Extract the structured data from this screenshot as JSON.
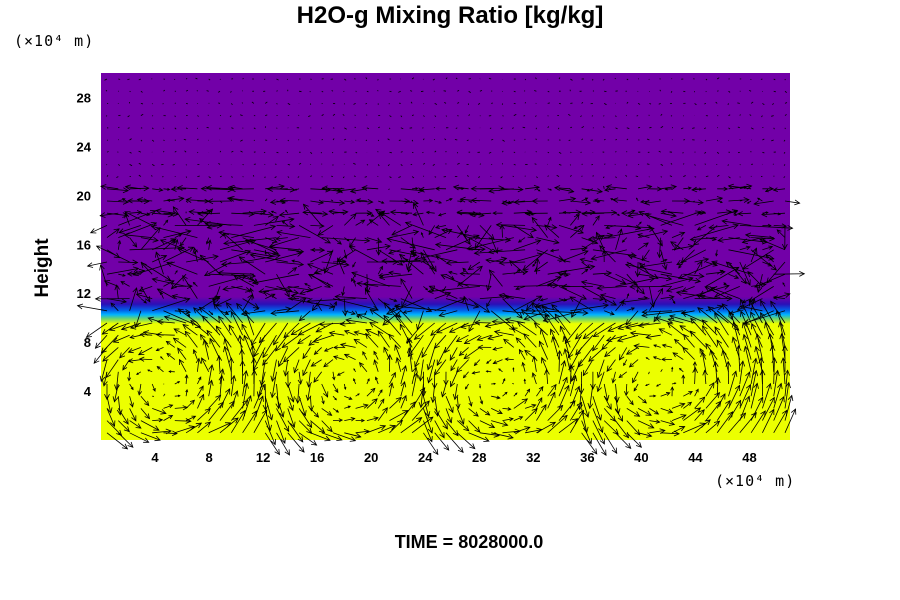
{
  "chart_data": {
    "type": "heatmap",
    "title": "H2O-g Mixing Ratio [kg/kg]",
    "ylabel": "Height",
    "x_unit": "(×10⁴ m)",
    "y_unit": "(×10⁴ m)",
    "footer": "TIME = 8028000.0",
    "xlim": [
      0,
      51
    ],
    "ylim": [
      0,
      30
    ],
    "x_ticks": [
      4,
      8,
      12,
      16,
      20,
      24,
      28,
      32,
      36,
      40,
      44,
      48
    ],
    "y_ticks": [
      4,
      8,
      12,
      16,
      20,
      24,
      28
    ],
    "field": {
      "moist_color": "#ecff00",
      "dry_color": "#7200a8",
      "transition_height": 10.5,
      "transition_colors": [
        "#5fd07a",
        "#00b4ff",
        "#0060e8",
        "#2a10b8"
      ]
    },
    "overlay": "velocity vectors",
    "arrow_color": "#000000"
  }
}
